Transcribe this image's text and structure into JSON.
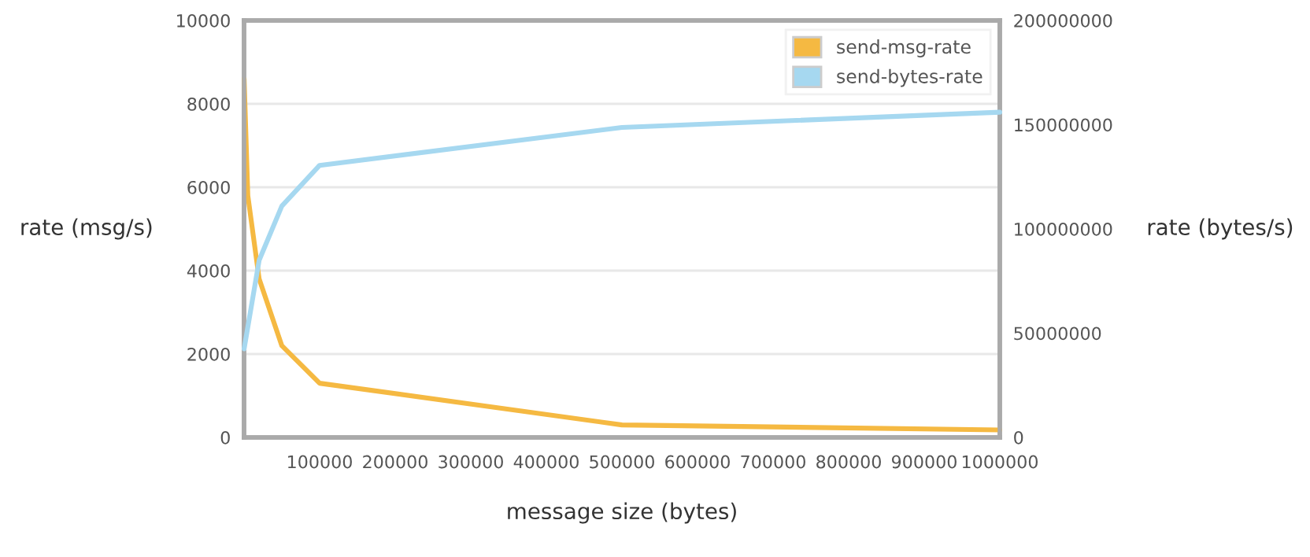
{
  "chart_data": {
    "type": "line",
    "xlabel": "message size (bytes)",
    "ylabel": "rate (msg/s)",
    "y2label": "rate (bytes/s)",
    "series": [
      {
        "name": "send-msg-rate",
        "color": "#f5b942",
        "x": [
          100,
          5000,
          20000,
          50000,
          100000,
          500000,
          1000000
        ],
        "values": [
          8600,
          5800,
          3800,
          2200,
          1300,
          300,
          180
        ]
      },
      {
        "name": "send-bytes-rate",
        "color": "#a6d8f0",
        "axis": "y2",
        "x": [
          100,
          20000,
          50000,
          100000,
          500000,
          1000000
        ],
        "values": [
          42500000,
          85000000,
          111000000,
          130500000,
          148700000,
          156000000
        ]
      }
    ],
    "xlim": [
      0,
      1000000
    ],
    "xticks": [
      100000,
      200000,
      300000,
      400000,
      500000,
      600000,
      700000,
      800000,
      900000,
      1000000
    ],
    "ylim": [
      0,
      10000
    ],
    "yticks": [
      0,
      2000,
      4000,
      6000,
      8000,
      10000
    ],
    "y2lim": [
      0,
      200000000
    ],
    "y2ticks": [
      0,
      50000000,
      100000000,
      150000000,
      200000000
    ],
    "grid": "y",
    "legend": "top right",
    "marker": "none",
    "line_style": "solid"
  }
}
